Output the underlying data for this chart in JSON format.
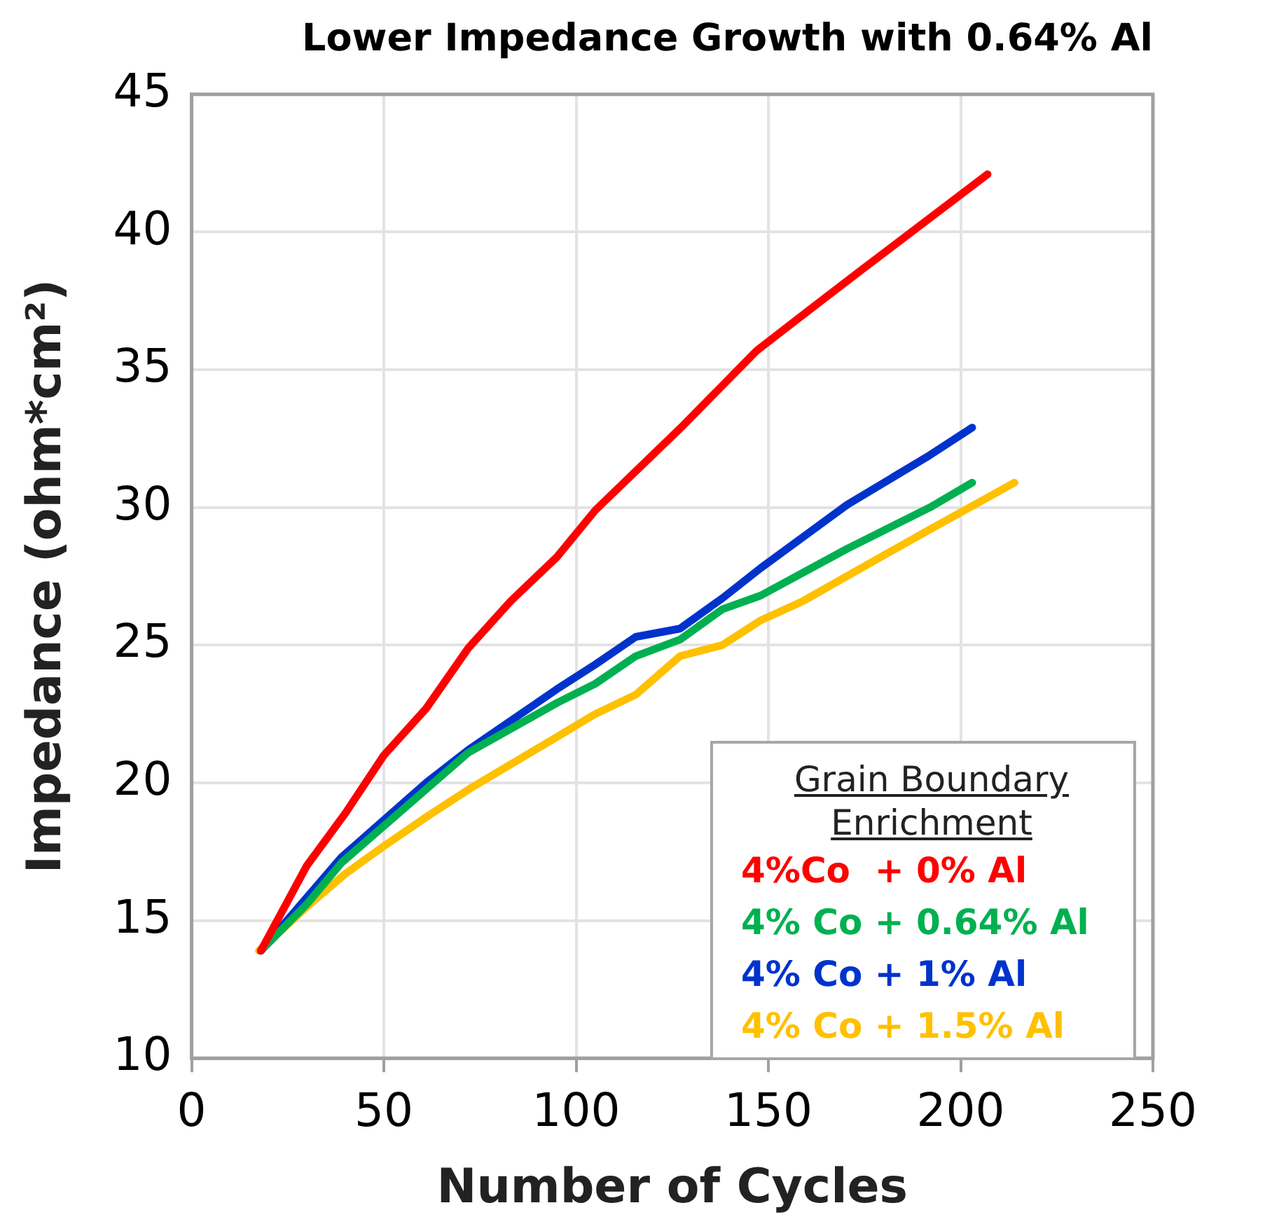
{
  "chart_data": {
    "type": "line",
    "title": "Lower Impedance Growth with 0.64% Al",
    "xlabel": "Number of Cycles",
    "ylabel": "Impedance (ohm*cm²)",
    "legend_title": "Grain Boundary Enrichment",
    "xlim": [
      0,
      250
    ],
    "xticks": [
      0,
      50,
      100,
      150,
      200,
      250
    ],
    "ylim": [
      10,
      45
    ],
    "yticks": [
      10,
      15,
      20,
      25,
      30,
      35,
      40,
      45
    ],
    "grid": true,
    "legend": "bottom right",
    "marker": "none",
    "line_style": "solid",
    "series": [
      {
        "name": "4%Co  + 0% Al",
        "color": "#ff0000",
        "x": [
          18,
          30,
          40,
          50,
          61,
          72,
          83,
          95,
          105,
          128,
          147,
          160,
          174,
          207
        ],
        "values": [
          13.9,
          17.0,
          18.9,
          21.0,
          22.7,
          24.9,
          26.6,
          28.2,
          29.9,
          33.0,
          35.7,
          37.1,
          38.6,
          42.1
        ]
      },
      {
        "name": "4% Co + 0.64% Al",
        "color": "#00b050",
        "x": [
          18,
          30,
          39,
          72,
          95,
          105,
          115.5,
          127,
          138,
          148,
          170.5,
          192,
          203
        ],
        "values": [
          13.9,
          15.6,
          17.1,
          21.1,
          22.9,
          23.6,
          24.6,
          25.2,
          26.3,
          26.8,
          28.5,
          30.0,
          30.9
        ]
      },
      {
        "name": "4% Co + 1% Al",
        "color": "#0033cc",
        "x": [
          18,
          39,
          61,
          72,
          95,
          105,
          115.5,
          127,
          138,
          148,
          170.5,
          192,
          203
        ],
        "values": [
          13.9,
          17.3,
          20.0,
          21.2,
          23.4,
          24.3,
          25.3,
          25.6,
          26.7,
          27.8,
          30.1,
          31.9,
          32.9
        ]
      },
      {
        "name": "4% Co + 1.5% Al",
        "color": "#ffc000",
        "x": [
          17.5,
          30,
          40,
          50,
          61.5,
          72.5,
          93,
          105,
          115.5,
          127,
          138,
          148,
          159,
          180.5,
          192,
          214
        ],
        "values": [
          13.9,
          15.5,
          16.7,
          17.7,
          18.8,
          19.8,
          21.5,
          22.5,
          23.2,
          24.6,
          25.0,
          25.9,
          26.6,
          28.3,
          29.2,
          30.9
        ]
      }
    ]
  }
}
